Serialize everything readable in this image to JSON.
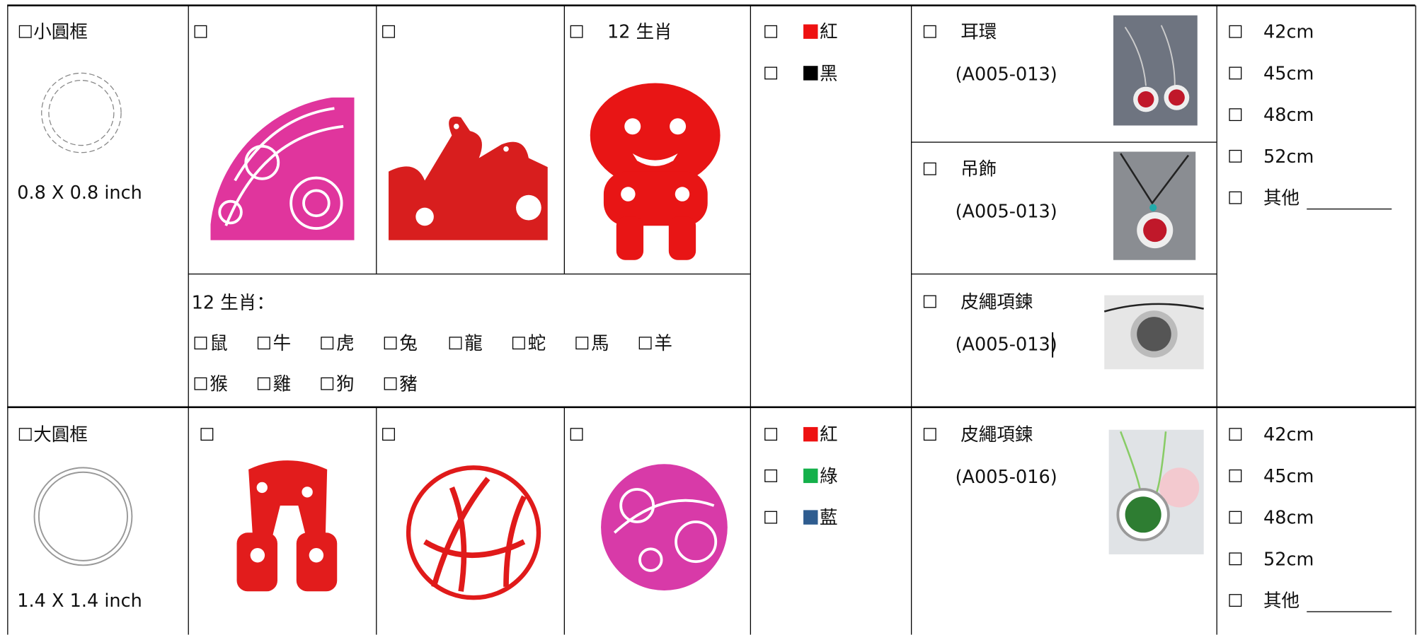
{
  "rows": [
    {
      "frame": {
        "name": "小圓框",
        "size": "0.8 X 0.8 inch"
      },
      "pattern_label": "12 生肖",
      "zodiac": {
        "title": "12 生肖：",
        "animals": [
          "鼠",
          "牛",
          "虎",
          "兔",
          "龍",
          "蛇",
          "馬",
          "羊",
          "猴",
          "雞",
          "狗",
          "豬"
        ]
      },
      "colors": [
        {
          "name": "紅",
          "color": "#ee1111"
        },
        {
          "name": "黑",
          "color": "#000000"
        }
      ],
      "products": [
        {
          "name": "耳環",
          "code": "(A005-013)"
        },
        {
          "name": "吊飾",
          "code": "(A005-013)"
        },
        {
          "name": "皮繩項鍊",
          "code": "(A005-013)"
        }
      ],
      "lengths": [
        "42cm",
        "45cm",
        "48cm",
        "52cm",
        "其他"
      ]
    },
    {
      "frame": {
        "name": "大圓框",
        "size": "1.4 X 1.4 inch"
      },
      "colors": [
        {
          "name": "紅",
          "color": "#ee1111"
        },
        {
          "name": "綠",
          "color": "#14b04a"
        },
        {
          "name": "藍",
          "color": "#2e5c8f"
        }
      ],
      "products": [
        {
          "name": "皮繩項鍊",
          "code": "(A005-016)"
        }
      ],
      "lengths": [
        "42cm",
        "45cm",
        "48cm",
        "52cm",
        "其他"
      ]
    }
  ]
}
